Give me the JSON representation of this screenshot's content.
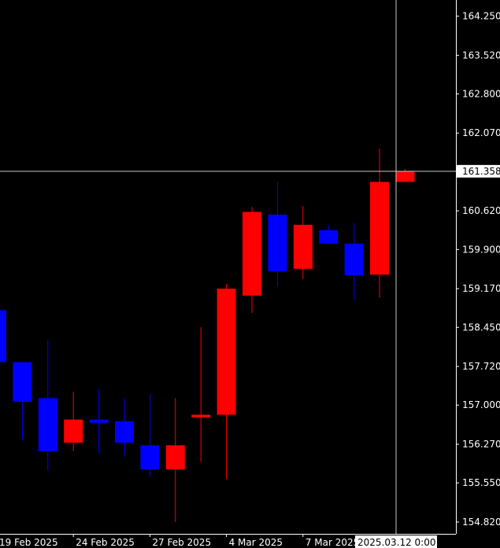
{
  "colors": {
    "background": "#000000",
    "axis": "#FFFFFF",
    "text": "#FFFFFF",
    "bull": "#FF0000",
    "bear": "#0000FF",
    "crosshair": "#C8C8C8",
    "label_bg": "#FFFFFF",
    "label_text": "#000000"
  },
  "crosshair": {
    "price_label": "161.358",
    "time_label": "2025.03.12 0:00"
  },
  "chart_data": {
    "type": "candlestick",
    "title": "",
    "xlabel": "",
    "ylabel": "",
    "ylim": [
      154.6,
      164.55
    ],
    "grid": false,
    "y_ticks": [
      "164.250",
      "163.520",
      "162.800",
      "162.070",
      "161.350",
      "160.620",
      "159.900",
      "159.170",
      "158.450",
      "157.720",
      "157.000",
      "156.270",
      "155.550",
      "154.820"
    ],
    "x_ticks": [
      {
        "label": "19 Feb 2025",
        "index": 0
      },
      {
        "label": "24 Feb 2025",
        "index": 3
      },
      {
        "label": "27 Feb 2025",
        "index": 6
      },
      {
        "label": "4 Mar 2025",
        "index": 9
      },
      {
        "label": "7 Mar 2025",
        "index": 12
      }
    ],
    "candles": [
      {
        "date": "2025-02-19",
        "open": 158.77,
        "high": 158.77,
        "low": 157.8,
        "close": 157.8
      },
      {
        "date": "2025-02-20",
        "open": 157.8,
        "high": 157.8,
        "low": 156.34,
        "close": 157.06
      },
      {
        "date": "2025-02-21",
        "open": 157.13,
        "high": 158.21,
        "low": 155.78,
        "close": 156.14
      },
      {
        "date": "2025-02-24",
        "open": 156.3,
        "high": 157.25,
        "low": 156.14,
        "close": 156.73
      },
      {
        "date": "2025-02-25",
        "open": 156.73,
        "high": 157.3,
        "low": 156.1,
        "close": 156.67
      },
      {
        "date": "2025-02-26",
        "open": 156.7,
        "high": 157.13,
        "low": 156.04,
        "close": 156.3
      },
      {
        "date": "2025-02-27",
        "open": 156.25,
        "high": 157.21,
        "low": 155.67,
        "close": 155.8
      },
      {
        "date": "2025-02-28",
        "open": 155.8,
        "high": 157.13,
        "low": 154.82,
        "close": 156.25
      },
      {
        "date": "2025-03-03",
        "open": 156.77,
        "high": 158.45,
        "low": 155.94,
        "close": 156.82
      },
      {
        "date": "2025-03-04",
        "open": 156.82,
        "high": 159.26,
        "low": 155.62,
        "close": 159.17
      },
      {
        "date": "2025-03-05",
        "open": 159.04,
        "high": 160.69,
        "low": 158.72,
        "close": 160.6
      },
      {
        "date": "2025-03-06",
        "open": 160.55,
        "high": 161.16,
        "low": 159.21,
        "close": 159.49
      },
      {
        "date": "2025-03-07",
        "open": 159.54,
        "high": 160.71,
        "low": 159.35,
        "close": 160.36
      },
      {
        "date": "2025-03-10",
        "open": 160.26,
        "high": 160.36,
        "low": 160.01,
        "close": 160.01
      },
      {
        "date": "2025-03-11",
        "open": 160.01,
        "high": 160.39,
        "low": 158.96,
        "close": 159.42
      },
      {
        "date": "2025-03-12",
        "open": 159.43,
        "high": 161.78,
        "low": 159.0,
        "close": 161.16
      },
      {
        "date": "2025-03-13",
        "open": 161.16,
        "high": 161.4,
        "low": 161.16,
        "close": 161.36
      }
    ]
  }
}
